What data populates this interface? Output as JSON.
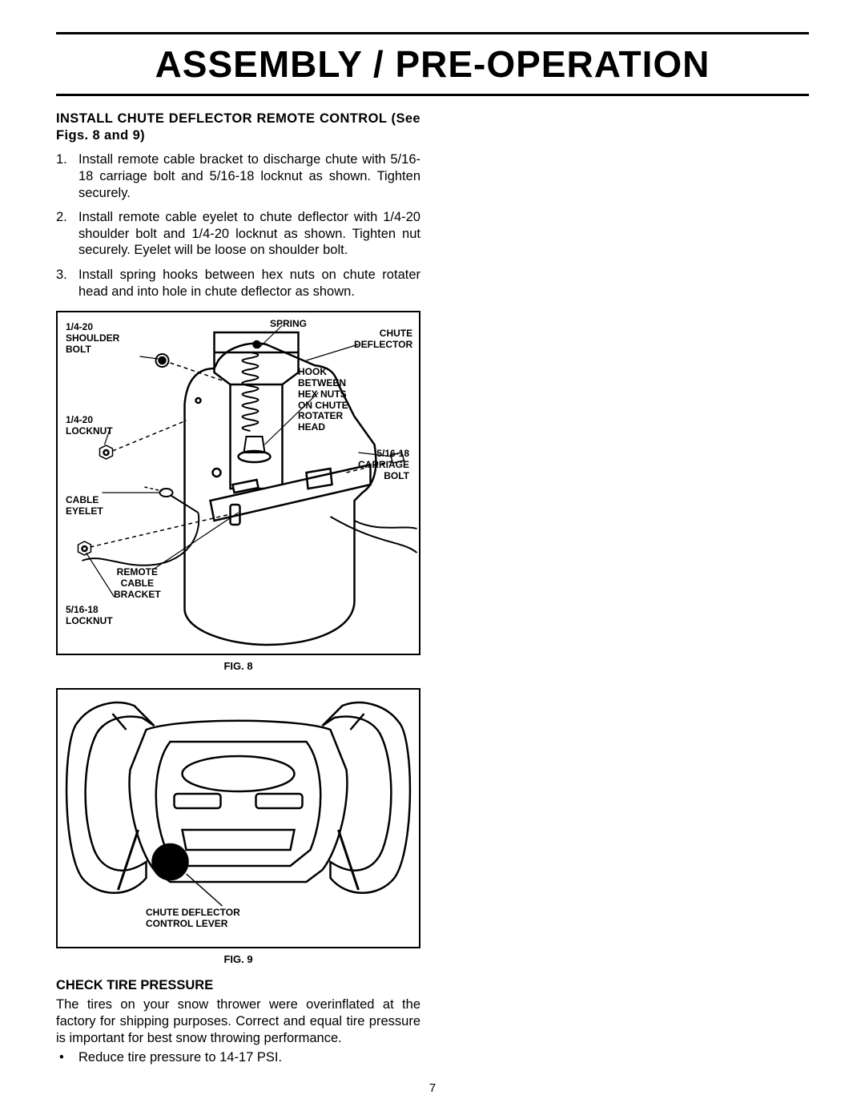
{
  "page": {
    "title": "ASSEMBLY / PRE-OPERATION",
    "number": "7"
  },
  "section1": {
    "heading_line1": "INSTALL CHUTE DEFLECTOR REMOTE CONTROL",
    "heading_line2": "(See Figs. 8 and 9)",
    "steps": [
      {
        "n": "1.",
        "t": "Install remote cable bracket to discharge chute with 5/16-18 carriage bolt and 5/16-18 locknut as shown. Tighten securely."
      },
      {
        "n": "2.",
        "t": "Install remote cable eyelet to chute deflector with 1/4-20 shoulder bolt and 1/4-20 locknut as shown. Tighten nut securely. Eyelet will be loose on shoulder bolt."
      },
      {
        "n": "3.",
        "t": "Install spring hooks between hex nuts on chute rotater head and into hole in chute deflector as shown."
      }
    ]
  },
  "fig8": {
    "caption": "FIG. 8",
    "labels": {
      "shoulder_bolt": "1/4-20\nSHOULDER\nBOLT",
      "spring": "SPRING",
      "chute_deflector": "CHUTE\nDEFLECTOR",
      "hook": "HOOK\nBETWEEN\nHEX NUTS\nON CHUTE\nROTATER\nHEAD",
      "locknut_14": "1/4-20\nLOCKNUT",
      "carriage": "5/16-18\nCARRIAGE\nBOLT",
      "cable_eyelet": "CABLE\nEYELET",
      "remote_bracket": "REMOTE\nCABLE\nBRACKET",
      "locknut_516": "5/16-18\nLOCKNUT"
    }
  },
  "fig9": {
    "caption": "FIG. 9",
    "labels": {
      "control_lever": "CHUTE DEFLECTOR\nCONTROL LEVER"
    }
  },
  "section2": {
    "heading": "CHECK TIRE PRESSURE",
    "para": "The tires on your snow thrower were overinflated at the factory for shipping purposes.  Correct and equal tire pressure is important for best snow throwing performance.",
    "bullet": "Reduce tire pressure to 14-17 PSI."
  }
}
